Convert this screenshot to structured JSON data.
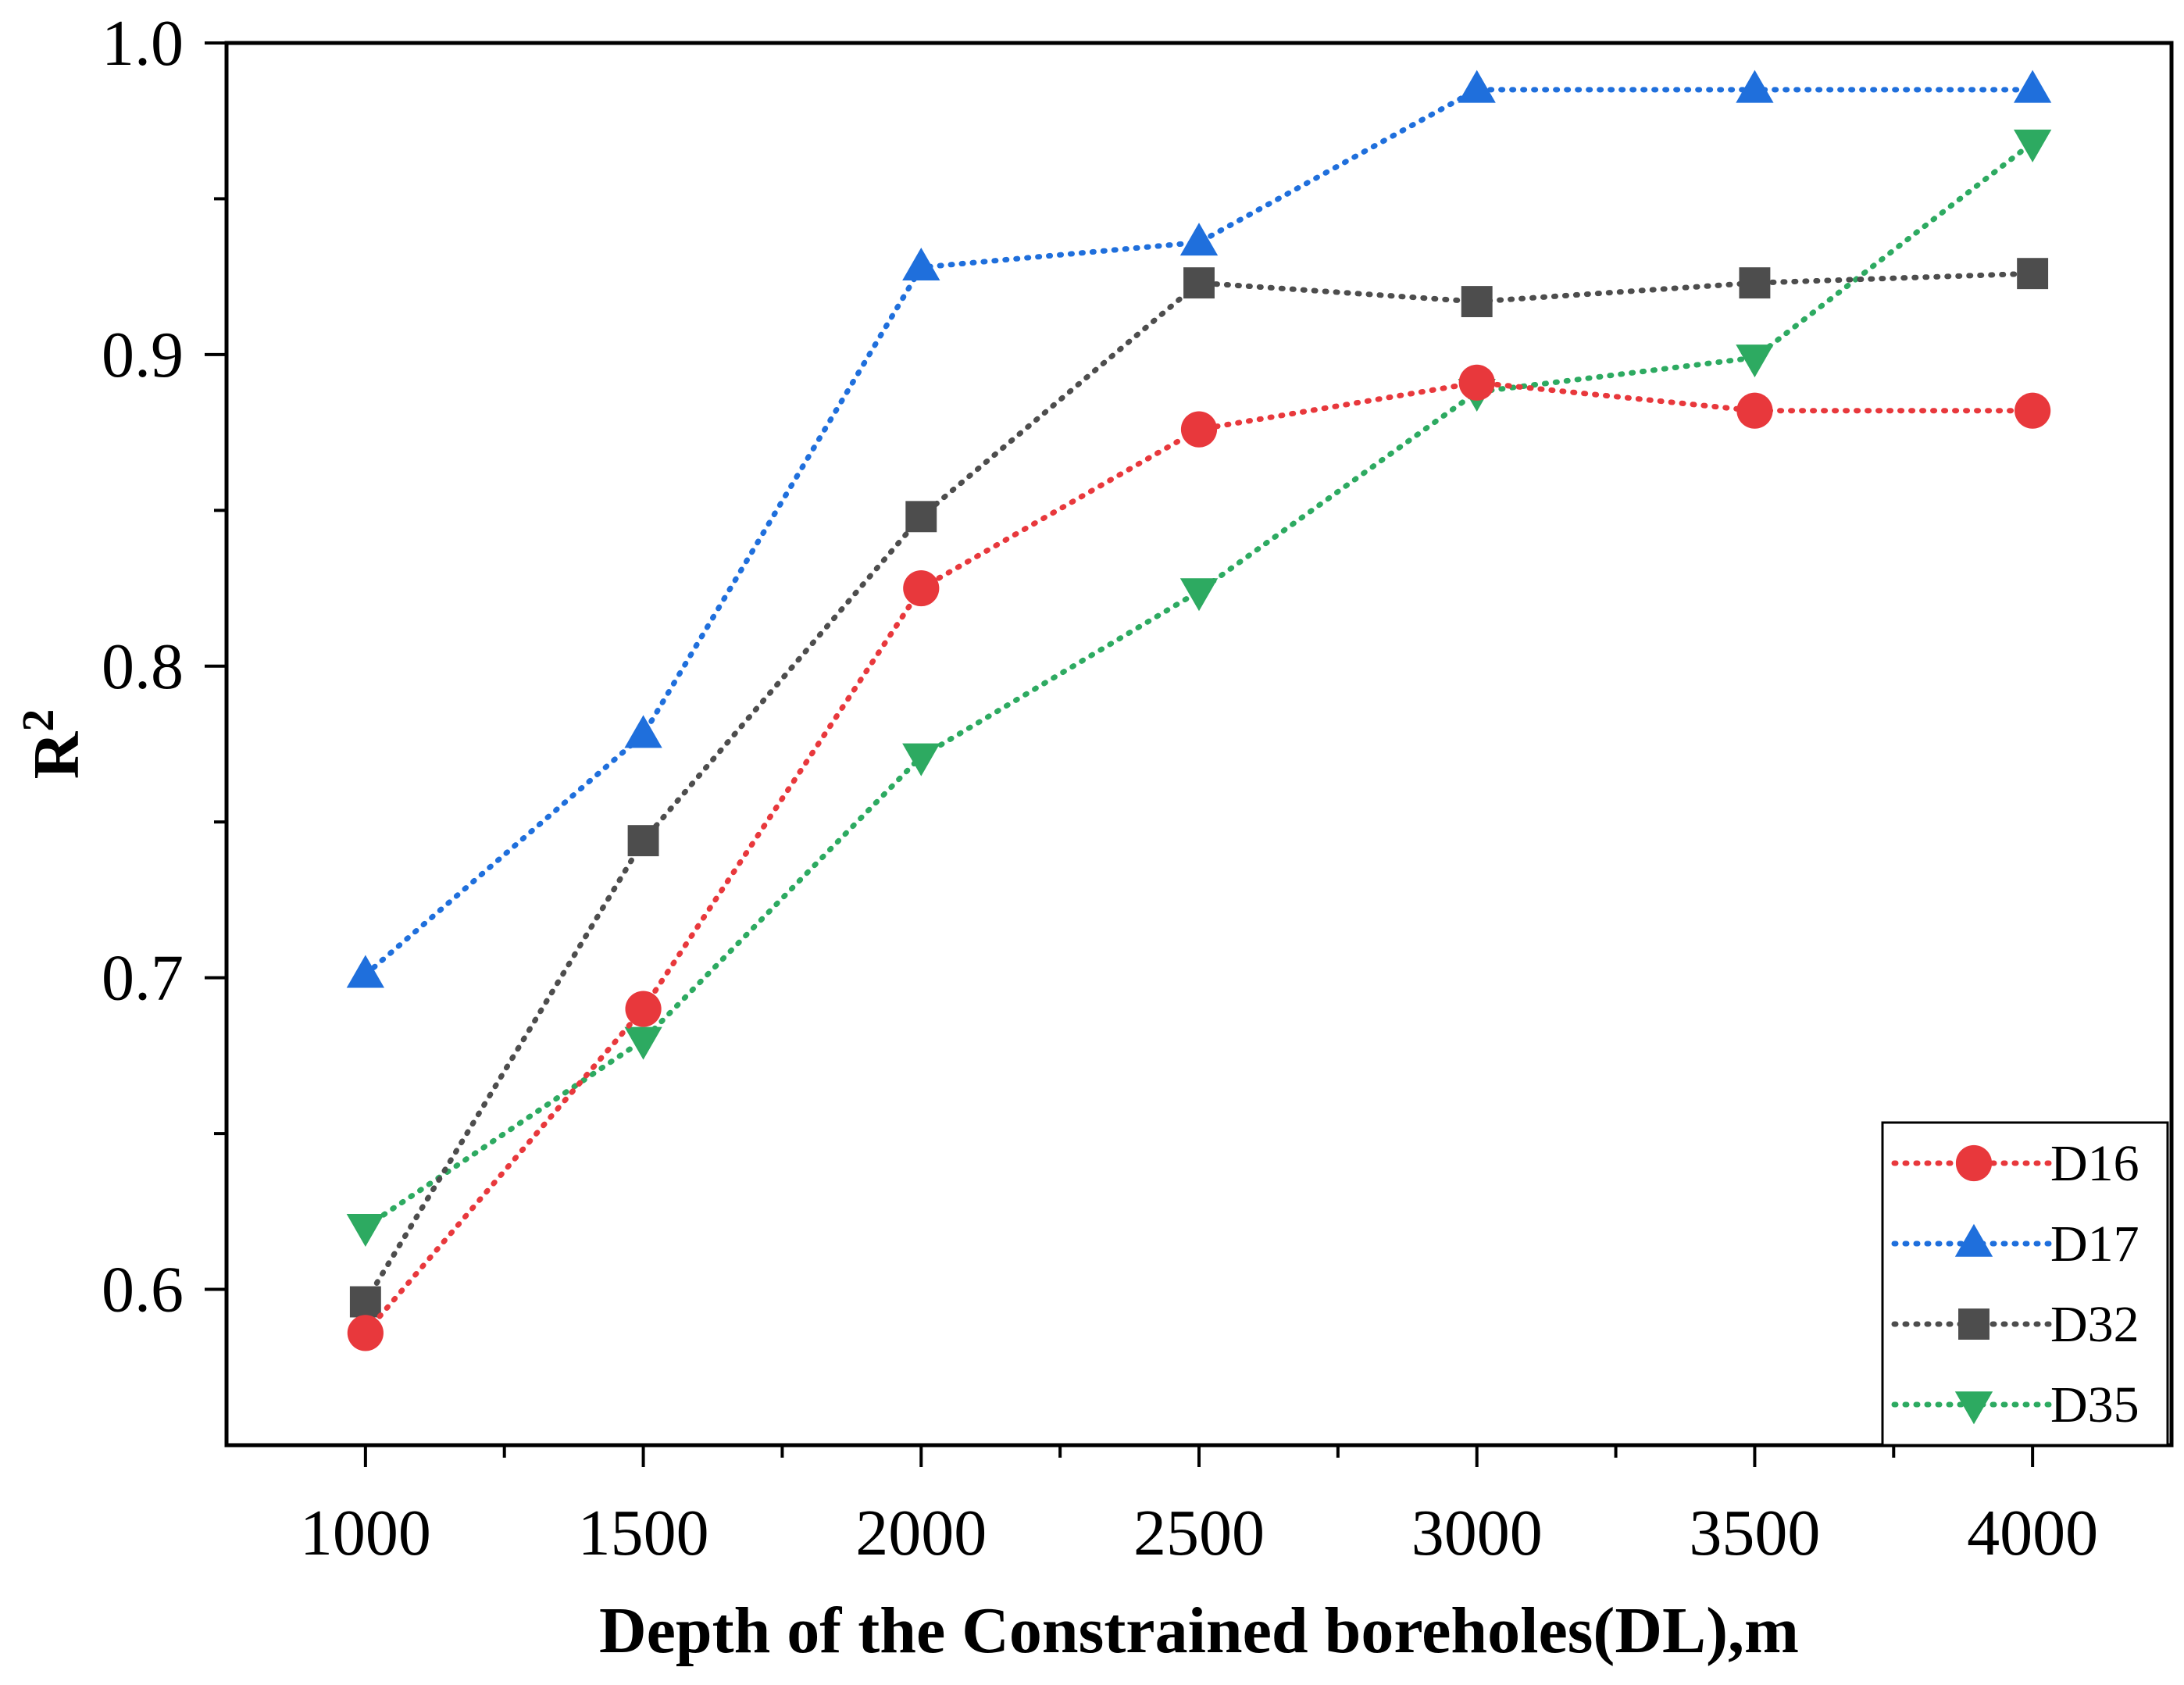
{
  "chart_data": {
    "type": "line",
    "title": "",
    "xlabel": "Depth of the Constrained boreholes(DL),m",
    "ylabel": "R",
    "ylabel_superscript": "2",
    "x": [
      1000,
      1500,
      2000,
      2500,
      3000,
      3500,
      4000
    ],
    "xlim": [
      750,
      4250
    ],
    "ylim": [
      0.55,
      1.0
    ],
    "xticks": [
      "1000",
      "1500",
      "2000",
      "2500",
      "3000",
      "3500",
      "4000"
    ],
    "yticks": [
      "0.6",
      "0.7",
      "0.8",
      "0.9",
      "1.0"
    ],
    "ytick_values": [
      0.6,
      0.7,
      0.8,
      0.9,
      1.0
    ],
    "legend_position": "bottom-right",
    "series": [
      {
        "name": "D16",
        "marker": "circle",
        "color": "#e8383c",
        "values": [
          0.586,
          0.69,
          0.825,
          0.876,
          0.891,
          0.882,
          0.882
        ]
      },
      {
        "name": "D17",
        "marker": "triangle-up",
        "color": "#1f6fdc",
        "values": [
          0.701,
          0.778,
          0.928,
          0.936,
          0.985,
          0.985,
          0.985
        ]
      },
      {
        "name": "D32",
        "marker": "square",
        "color": "#4d4d4d",
        "values": [
          0.596,
          0.744,
          0.848,
          0.923,
          0.917,
          0.923,
          0.926
        ]
      },
      {
        "name": "D35",
        "marker": "triangle-down",
        "color": "#2daa61",
        "values": [
          0.62,
          0.68,
          0.771,
          0.824,
          0.888,
          0.899,
          0.968
        ]
      }
    ]
  }
}
